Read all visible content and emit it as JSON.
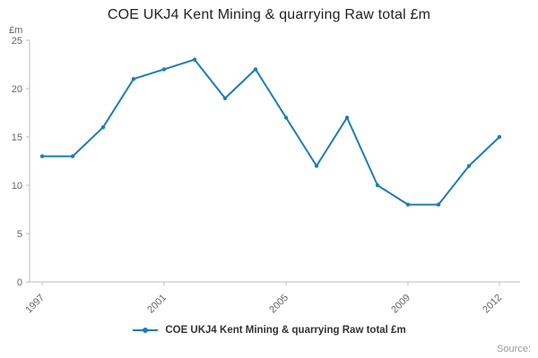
{
  "title": "COE UKJ4 Kent Mining & quarrying Raw total £m",
  "axis_unit_label": "£m",
  "source_label": "Source:",
  "legend": {
    "label": "COE UKJ4 Kent Mining & quarrying Raw total £m"
  },
  "colors": {
    "line": "#1f7bb6",
    "axis": "#bcbcbc",
    "tick_text": "#666666",
    "title_text": "#222222"
  },
  "chart_data": {
    "type": "line",
    "title": "COE UKJ4 Kent Mining & quarrying Raw total £m",
    "xlabel": "",
    "ylabel": "£m",
    "x": [
      1997,
      1998,
      1999,
      2000,
      2001,
      2002,
      2003,
      2004,
      2005,
      2006,
      2007,
      2008,
      2009,
      2010,
      2011,
      2012
    ],
    "series": [
      {
        "name": "COE UKJ4 Kent Mining & quarrying Raw total £m",
        "values": [
          13,
          13,
          16,
          21,
          22,
          23,
          19,
          22,
          17,
          12,
          17,
          10,
          8,
          8,
          12,
          15
        ]
      }
    ],
    "ylim": [
      0,
      25
    ],
    "yticks": [
      0,
      5,
      10,
      15,
      20,
      25
    ],
    "xtick_years": [
      1997,
      2001,
      2005,
      2009,
      2012
    ],
    "xtick_labels": [
      "1997",
      "2001",
      "2005",
      "2009",
      "2012"
    ],
    "grid": false,
    "legend_position": "bottom"
  }
}
